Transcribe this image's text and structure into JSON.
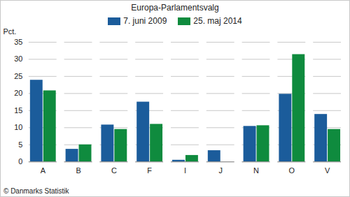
{
  "chart_data": {
    "type": "bar",
    "title": "Europa-Parlamentsvalg",
    "caption": "© Danmarks Statistik",
    "y_label": "Pct.",
    "categories": [
      "A",
      "B",
      "C",
      "F",
      "I",
      "J",
      "N",
      "O",
      "V"
    ],
    "series": [
      {
        "name": "7. juni 2009",
        "color": "#1b5c9b",
        "values": [
          23.9,
          3.7,
          10.8,
          17.5,
          0.5,
          3.3,
          10.4,
          19.8,
          13.9
        ]
      },
      {
        "name": "25. maj 2014",
        "color": "#0f8b3e",
        "values": [
          20.8,
          5.0,
          9.5,
          11.0,
          1.9,
          null,
          10.6,
          31.4,
          9.5
        ]
      }
    ],
    "ylim": [
      0,
      35
    ],
    "yticks": [
      0,
      5,
      10,
      15,
      20,
      25,
      30,
      35
    ],
    "grid": true,
    "legend": "top"
  }
}
